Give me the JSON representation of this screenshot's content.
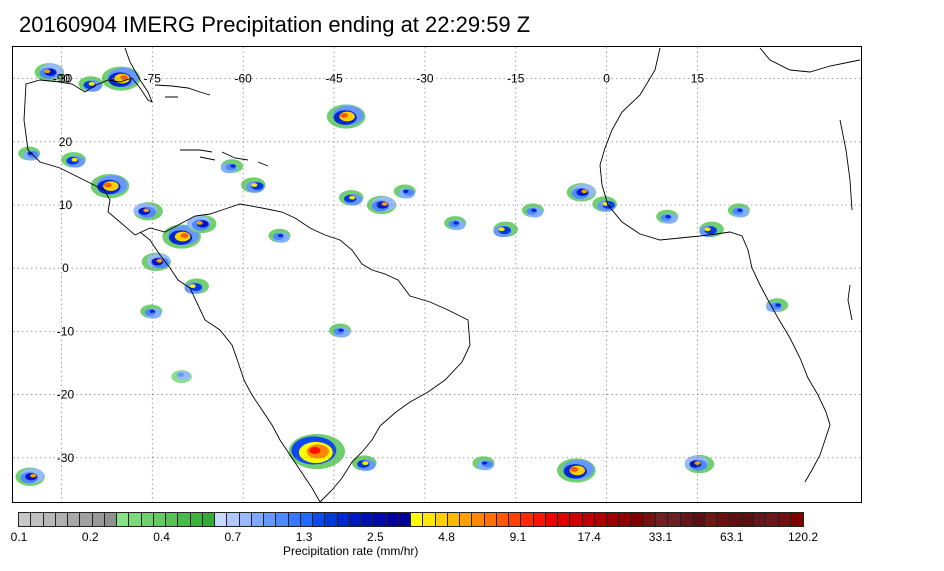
{
  "title": "20160904 IMERG Precipitation ending at 22:29:59 Z",
  "map": {
    "type": "precipitation-map",
    "projection": "equirectangular",
    "lon_range": [
      -98,
      42
    ],
    "lat_range": [
      35,
      -37
    ],
    "lon_labels": [
      "-90",
      "-75",
      "-60",
      "-45",
      "-30",
      "-15",
      "0",
      "15"
    ],
    "lat_labels": [
      "30",
      "20",
      "10",
      "0",
      "-10",
      "-20",
      "-30"
    ],
    "grid": "dotted",
    "colors": {
      "frame": "#000000",
      "coast": "#000000",
      "grid": "#888888"
    }
  },
  "colorbar": {
    "title": "Precipitation rate (mm/hr)",
    "tick_labels": [
      "0.1",
      "0.2",
      "0.4",
      "0.7",
      "1.3",
      "2.5",
      "4.8",
      "9.1",
      "17.4",
      "33.1",
      "63.1",
      "120.2"
    ],
    "colors": [
      "#c8c8c8",
      "#c0c0c0",
      "#b8b8b8",
      "#b0b0b0",
      "#a8a8a8",
      "#a0a0a0",
      "#989898",
      "#909090",
      "#88e088",
      "#7cd87c",
      "#70d070",
      "#64c864",
      "#58c058",
      "#4cb84c",
      "#40b040",
      "#38a838",
      "#c8d8ff",
      "#b0c8ff",
      "#98b8ff",
      "#80a8ff",
      "#6898ff",
      "#5088ff",
      "#3878ff",
      "#2068ff",
      "#1048f0",
      "#0038e0",
      "#0028d0",
      "#0018c0",
      "#0010b0",
      "#0008a8",
      "#0000a0",
      "#000098",
      "#ffff00",
      "#ffe800",
      "#ffd000",
      "#ffb800",
      "#ffa000",
      "#ff8800",
      "#ff7000",
      "#ff5800",
      "#ff4000",
      "#ff2800",
      "#ff1000",
      "#f00000",
      "#e00000",
      "#d00000",
      "#c00000",
      "#b00000",
      "#a00000",
      "#900000",
      "#800000",
      "#781010",
      "#702020",
      "#682020",
      "#601818",
      "#581010",
      "#701818",
      "#681010",
      "#601010",
      "#581010",
      "#601818",
      "#681818",
      "#701010",
      "#800000"
    ]
  },
  "precip_cells": [
    {
      "lon": -92,
      "lat": 31,
      "rate": 9.1
    },
    {
      "lon": -85,
      "lat": 29,
      "rate": 4.8
    },
    {
      "lon": -80,
      "lat": 30,
      "rate": 17.4
    },
    {
      "lon": -95,
      "lat": 18,
      "rate": 2.5
    },
    {
      "lon": -88,
      "lat": 17,
      "rate": 4.8
    },
    {
      "lon": -82,
      "lat": 13,
      "rate": 17.4
    },
    {
      "lon": -76,
      "lat": 9,
      "rate": 9.1
    },
    {
      "lon": -70,
      "lat": 5,
      "rate": 17.4
    },
    {
      "lon": -67,
      "lat": 7,
      "rate": 9.1
    },
    {
      "lon": -74,
      "lat": 1,
      "rate": 9.1
    },
    {
      "lon": -68,
      "lat": -3,
      "rate": 4.8
    },
    {
      "lon": -75,
      "lat": -7,
      "rate": 2.5
    },
    {
      "lon": -62,
      "lat": 16,
      "rate": 2.5
    },
    {
      "lon": -58,
      "lat": 13,
      "rate": 4.8
    },
    {
      "lon": -54,
      "lat": 5,
      "rate": 2.5
    },
    {
      "lon": -43,
      "lat": 24,
      "rate": 17.4
    },
    {
      "lon": -42,
      "lat": 11,
      "rate": 4.8
    },
    {
      "lon": -37,
      "lat": 10,
      "rate": 9.1
    },
    {
      "lon": -33,
      "lat": 12,
      "rate": 2.5
    },
    {
      "lon": -25,
      "lat": 7,
      "rate": 2.5
    },
    {
      "lon": -17,
      "lat": 6,
      "rate": 4.8
    },
    {
      "lon": -12,
      "lat": 9,
      "rate": 2.5
    },
    {
      "lon": -4,
      "lat": 12,
      "rate": 9.1
    },
    {
      "lon": 0,
      "lat": 10,
      "rate": 4.8
    },
    {
      "lon": 10,
      "lat": 8,
      "rate": 2.5
    },
    {
      "lon": 17,
      "lat": 6,
      "rate": 4.8
    },
    {
      "lon": 22,
      "lat": 9,
      "rate": 2.5
    },
    {
      "lon": 28,
      "lat": -6,
      "rate": 2.5
    },
    {
      "lon": -48,
      "lat": -29,
      "rate": 33.1
    },
    {
      "lon": -40,
      "lat": -31,
      "rate": 4.8
    },
    {
      "lon": -5,
      "lat": -32,
      "rate": 17.4
    },
    {
      "lon": 15,
      "lat": -31,
      "rate": 9.1
    },
    {
      "lon": -95,
      "lat": -33,
      "rate": 9.1
    },
    {
      "lon": -20,
      "lat": -31,
      "rate": 2.5
    },
    {
      "lon": -44,
      "lat": -10,
      "rate": 2.5
    },
    {
      "lon": -70,
      "lat": -17,
      "rate": 1.3
    }
  ]
}
